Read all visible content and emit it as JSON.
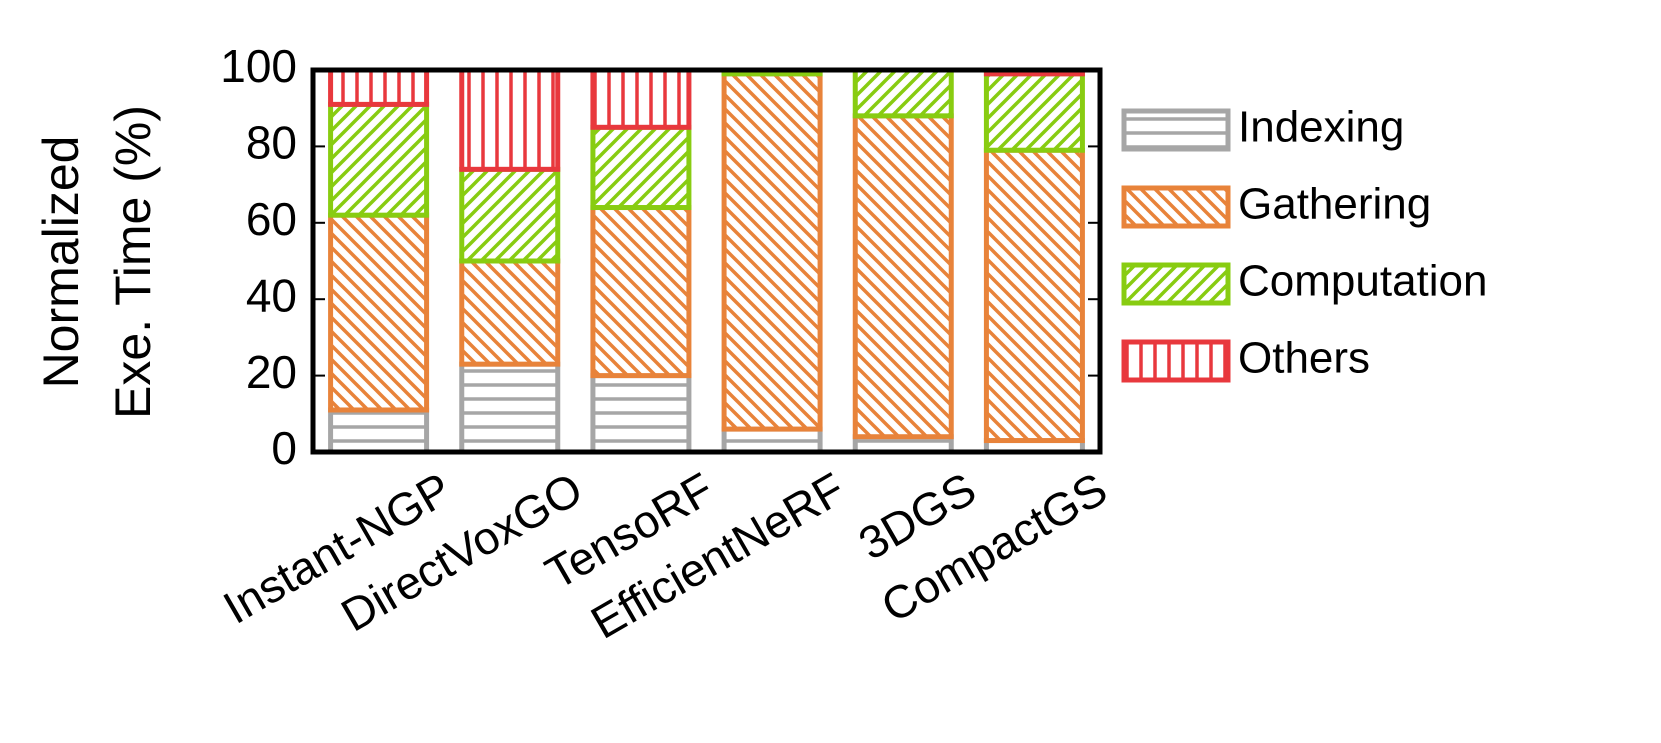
{
  "chart_data": {
    "type": "stacked_bar",
    "ylabel": [
      "Normalized",
      "Exe. Time (%)"
    ],
    "categories": [
      "Instant-NGP",
      "DirectVoxGO",
      "TensoRF",
      "EfficientNeRF",
      "3DGS",
      "CompactGS"
    ],
    "series": [
      {
        "name": "Indexing",
        "color": "#a6a6a6",
        "pattern": "horizontal",
        "values": [
          11,
          23,
          20,
          6,
          4,
          3
        ]
      },
      {
        "name": "Gathering",
        "color": "#e8833a",
        "pattern": "backslash",
        "values": [
          51,
          27,
          44,
          93,
          84,
          76
        ]
      },
      {
        "name": "Computation",
        "color": "#88cc11",
        "pattern": "slash",
        "values": [
          29,
          24,
          21,
          1,
          12,
          20
        ]
      },
      {
        "name": "Others",
        "color": "#e8383d",
        "pattern": "vertical",
        "values": [
          9,
          26,
          15,
          0,
          0,
          1
        ]
      }
    ],
    "ylim": [
      0,
      100
    ],
    "yticks": [
      0,
      20,
      40,
      60,
      80,
      100
    ],
    "legend": "right"
  }
}
